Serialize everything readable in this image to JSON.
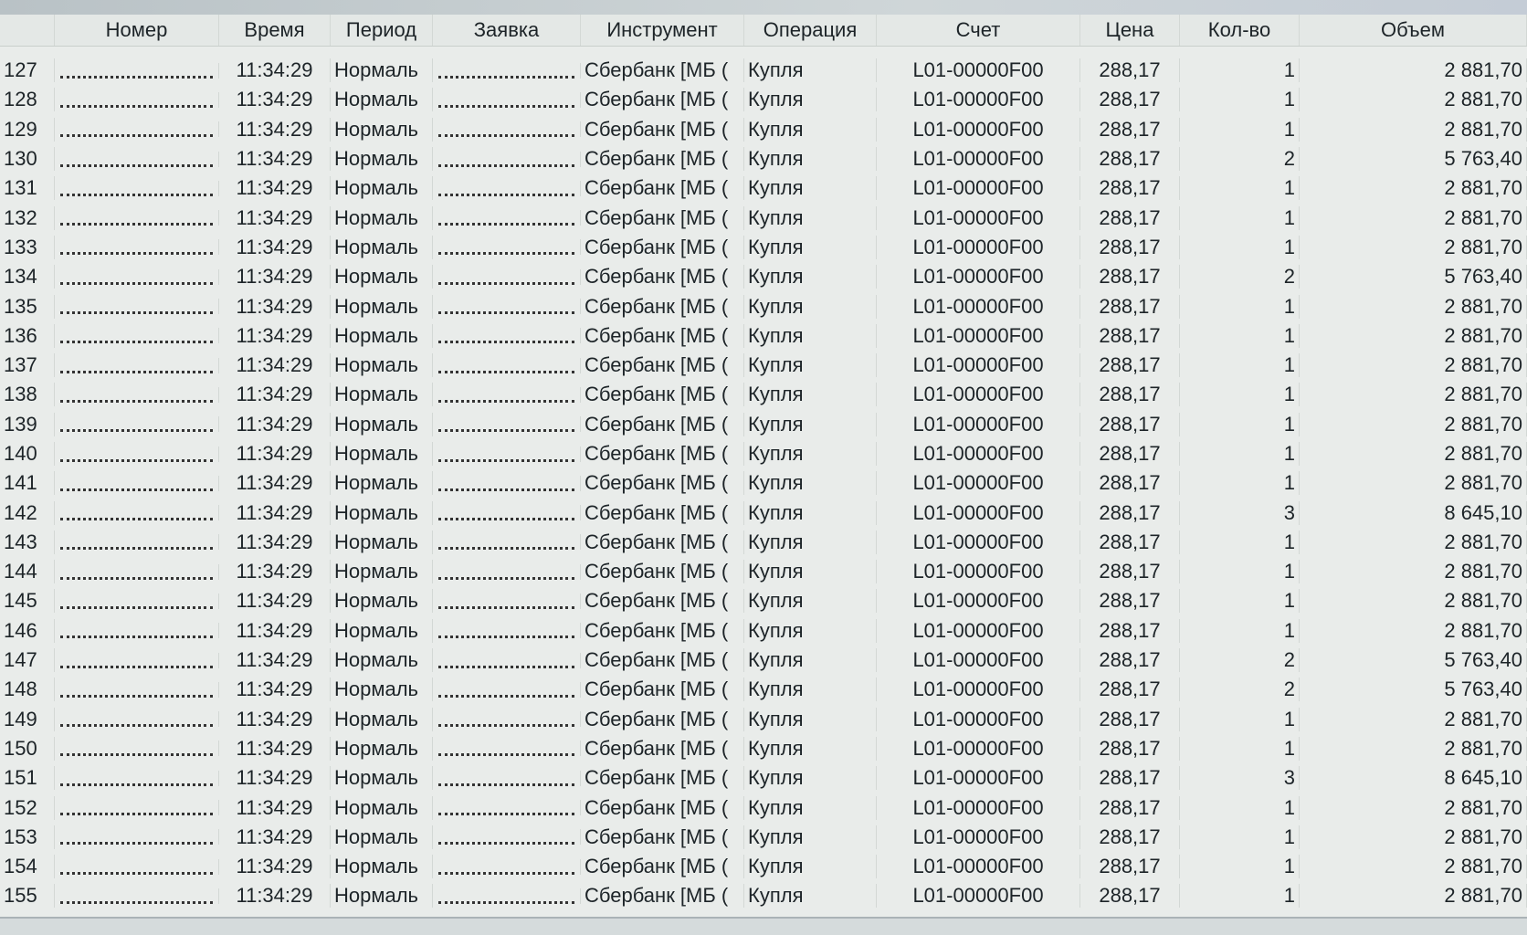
{
  "columns": [
    "",
    "Номер",
    "Время",
    "Период",
    "Заявка",
    "Инструмент",
    "Операция",
    "Счет",
    "Цена",
    "Кол-во",
    "Объем"
  ],
  "time": "11:34:29",
  "period": "Нормаль",
  "instrument": "Сбербанк [МБ (",
  "operation": "Купля",
  "account": "L01-00000F00",
  "price": "288,17",
  "rows": [
    {
      "n": "127",
      "qty": "1",
      "vol": "2 881,70"
    },
    {
      "n": "128",
      "qty": "1",
      "vol": "2 881,70"
    },
    {
      "n": "129",
      "qty": "1",
      "vol": "2 881,70"
    },
    {
      "n": "130",
      "qty": "2",
      "vol": "5 763,40"
    },
    {
      "n": "131",
      "qty": "1",
      "vol": "2 881,70"
    },
    {
      "n": "132",
      "qty": "1",
      "vol": "2 881,70"
    },
    {
      "n": "133",
      "qty": "1",
      "vol": "2 881,70"
    },
    {
      "n": "134",
      "qty": "2",
      "vol": "5 763,40"
    },
    {
      "n": "135",
      "qty": "1",
      "vol": "2 881,70"
    },
    {
      "n": "136",
      "qty": "1",
      "vol": "2 881,70"
    },
    {
      "n": "137",
      "qty": "1",
      "vol": "2 881,70"
    },
    {
      "n": "138",
      "qty": "1",
      "vol": "2 881,70"
    },
    {
      "n": "139",
      "qty": "1",
      "vol": "2 881,70"
    },
    {
      "n": "140",
      "qty": "1",
      "vol": "2 881,70"
    },
    {
      "n": "141",
      "qty": "1",
      "vol": "2 881,70"
    },
    {
      "n": "142",
      "qty": "3",
      "vol": "8 645,10"
    },
    {
      "n": "143",
      "qty": "1",
      "vol": "2 881,70"
    },
    {
      "n": "144",
      "qty": "1",
      "vol": "2 881,70"
    },
    {
      "n": "145",
      "qty": "1",
      "vol": "2 881,70"
    },
    {
      "n": "146",
      "qty": "1",
      "vol": "2 881,70"
    },
    {
      "n": "147",
      "qty": "2",
      "vol": "5 763,40"
    },
    {
      "n": "148",
      "qty": "2",
      "vol": "5 763,40"
    },
    {
      "n": "149",
      "qty": "1",
      "vol": "2 881,70"
    },
    {
      "n": "150",
      "qty": "1",
      "vol": "2 881,70"
    },
    {
      "n": "151",
      "qty": "3",
      "vol": "8 645,10"
    },
    {
      "n": "152",
      "qty": "1",
      "vol": "2 881,70"
    },
    {
      "n": "153",
      "qty": "1",
      "vol": "2 881,70"
    },
    {
      "n": "154",
      "qty": "1",
      "vol": "2 881,70"
    },
    {
      "n": "155",
      "qty": "1",
      "vol": "2 881,70"
    }
  ]
}
